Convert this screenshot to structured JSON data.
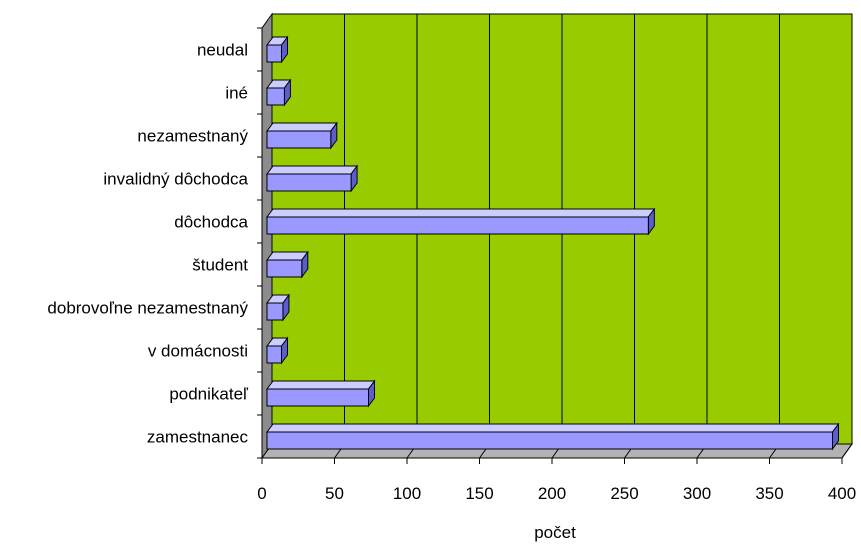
{
  "chart_data": {
    "type": "bar",
    "orientation": "horizontal",
    "style": "3d",
    "categories": [
      "zamestnanec",
      "podnikateľ",
      "v domácnosti",
      "dobrovoľne nezamestnaný",
      "študent",
      "dôchodca",
      "invalidný dôchodca",
      "nezamestnaný",
      "iné",
      "neudal"
    ],
    "values": [
      390,
      70,
      10,
      11,
      24,
      263,
      58,
      44,
      12,
      10
    ],
    "xlabel": "počet",
    "ylabel": "",
    "xlim": [
      0,
      400
    ],
    "xticks": [
      "0",
      "50",
      "100",
      "150",
      "200",
      "250",
      "300",
      "350",
      "400"
    ],
    "grid": "vertical",
    "legend": "none",
    "colors": {
      "plot_background": "#99cc00",
      "bar_front": "#9999ff",
      "bar_top": "#ccccff",
      "bar_side": "#5c5ccc",
      "wall_side": "#8c8c8c",
      "floor": "#b3b3b3",
      "gridline": "#000000"
    }
  }
}
